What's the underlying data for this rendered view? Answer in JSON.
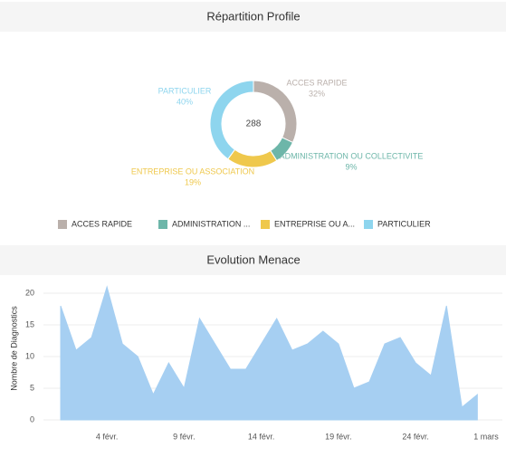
{
  "chart_data": [
    {
      "type": "donut",
      "title": "Répartition Profile",
      "total": 288,
      "categories": [
        "ACCES RAPIDE",
        "ADMINISTRATION OU COLLECTIVITE",
        "ENTREPRISE OU ASSOCIATION",
        "PARTICULIER"
      ],
      "legend_labels": [
        "ACCES RAPIDE",
        "ADMINISTRATION ...",
        "ENTREPRISE OU A...",
        "PARTICULIER"
      ],
      "values": [
        32,
        9,
        19,
        40
      ],
      "value_labels": [
        "32%",
        "9%",
        "19%",
        "40%"
      ],
      "colors": [
        "#bab0ab",
        "#6db6a9",
        "#efc84c",
        "#8ed5ee"
      ],
      "legend": "bottom"
    },
    {
      "type": "area",
      "title": "Evolution Menace",
      "ylabel": "Nombre de Diagnostics",
      "categories": [
        null,
        null,
        null,
        "4 févr.",
        null,
        null,
        null,
        null,
        "9 févr.",
        null,
        null,
        null,
        null,
        "14 févr.",
        null,
        null,
        null,
        null,
        "19 févr.",
        null,
        null,
        null,
        null,
        "24 févr.",
        null,
        null,
        null,
        null,
        "1 mars"
      ],
      "values": [
        18,
        11,
        13,
        21,
        12,
        10,
        4,
        9,
        5,
        16,
        12,
        8,
        8,
        12,
        16,
        11,
        12,
        14,
        12,
        5,
        6,
        12,
        13,
        9,
        7,
        18,
        2,
        4,
        null
      ],
      "color": "#a6cff2",
      "ylim": [
        -1,
        22
      ],
      "yticks": [
        0,
        5,
        10,
        15,
        20
      ],
      "grid": true
    }
  ]
}
